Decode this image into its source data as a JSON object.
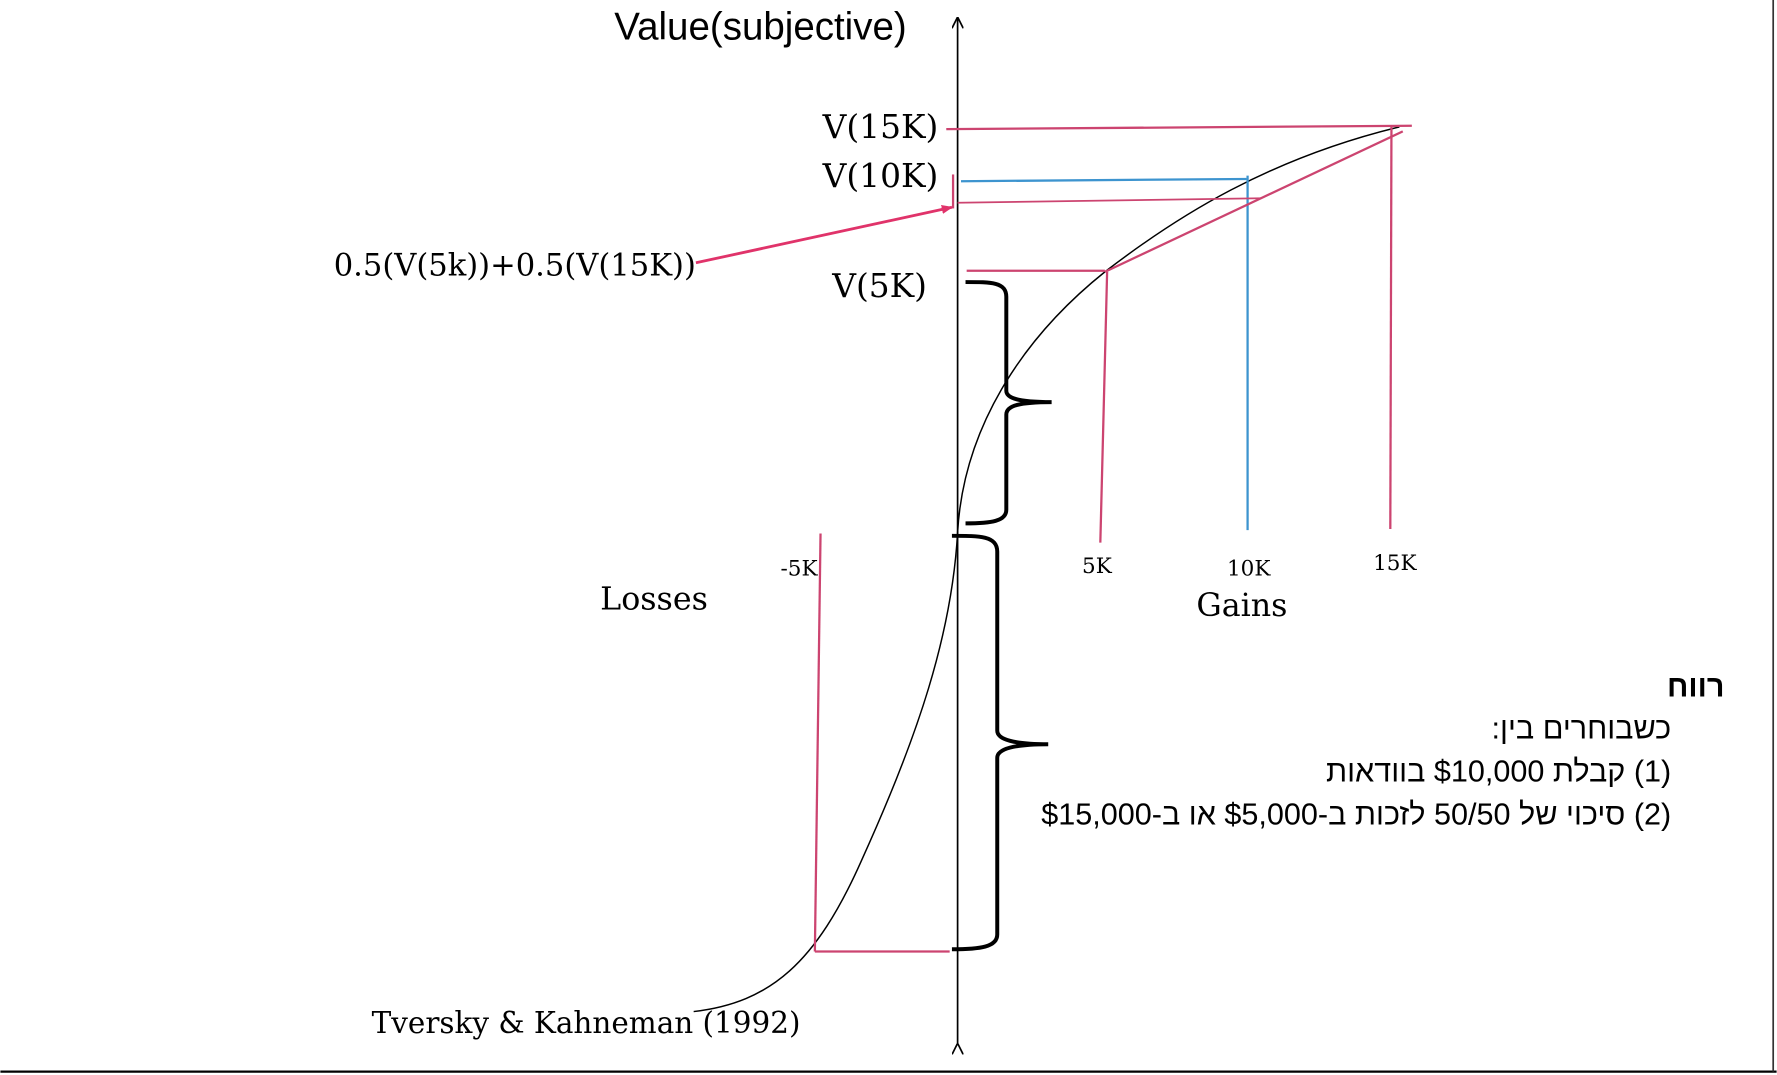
{
  "title": "Value(subjective)",
  "labels": {
    "v15k": "V(15K)",
    "v10k": "V(10K)",
    "v5k": "V(5K)",
    "expected": "0.5(V(5k))+0.5(V(15K))",
    "tick_5k": "5K",
    "tick_10k": "10K",
    "tick_15k": "15K",
    "tick_neg5k": "-5K",
    "gains": "Gains",
    "losses": "Losses",
    "citation": "Tversky & Kahneman (1992)"
  },
  "hebrew_text": {
    "heading": "רווח",
    "line1": "כשבוחרים בין:",
    "line2": "(1) קבלת $10,000 בוודאות",
    "line3": "(2) סיכוי של 50/50 לזכות ב-$5,000 או ב-$15,000"
  },
  "colors": {
    "pink": "#cc4470",
    "blue": "#3d94cf",
    "arrow": "#e0336a",
    "curve": "#000000"
  }
}
